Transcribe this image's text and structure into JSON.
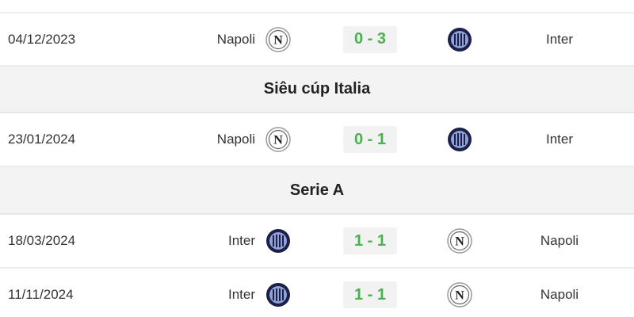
{
  "sections": [
    {
      "title": "Siêu cúp Italia"
    },
    {
      "title": "Serie A"
    }
  ],
  "matches": [
    {
      "date": "04/12/2023",
      "home": "Napoli",
      "home_logo": "napoli-logo",
      "score": "0 - 3",
      "away": "Inter",
      "away_logo": "inter-logo"
    },
    {
      "date": "23/01/2024",
      "home": "Napoli",
      "home_logo": "napoli-logo",
      "score": "0 - 1",
      "away": "Inter",
      "away_logo": "inter-logo"
    },
    {
      "date": "18/03/2024",
      "home": "Inter",
      "home_logo": "inter-logo",
      "score": "1 - 1",
      "away": "Napoli",
      "away_logo": "napoli-logo"
    },
    {
      "date": "11/11/2024",
      "home": "Inter",
      "home_logo": "inter-logo",
      "score": "1 - 1",
      "away": "Napoli",
      "away_logo": "napoli-logo"
    }
  ],
  "colors": {
    "score": "#4caf50",
    "score_bg": "#f2f2f2",
    "section_bg": "#f3f3f3",
    "inter": "#1b1f4a"
  }
}
